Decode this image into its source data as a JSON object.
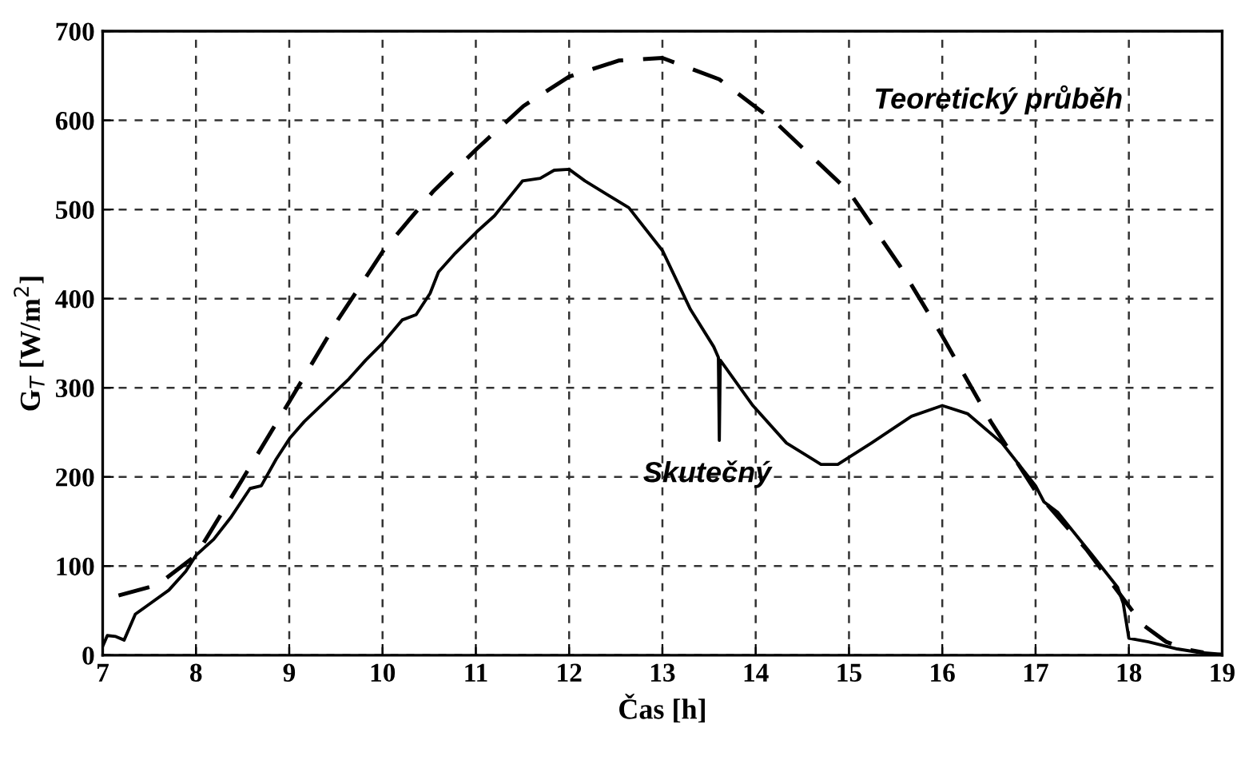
{
  "chart_data": {
    "type": "line",
    "xlabel": "Čas [h]",
    "ylabel": "G$_{T}$ [W/m$^{2}$]",
    "xlim": [
      7,
      19
    ],
    "xticks": [
      7,
      8,
      9,
      10,
      11,
      12,
      13,
      14,
      15,
      16,
      17,
      18,
      19
    ],
    "ylim": [
      0,
      700
    ],
    "yticks": [
      0,
      100,
      200,
      300,
      400,
      500,
      600,
      700
    ],
    "grid": true,
    "legend": false,
    "marker": "none",
    "series": [
      {
        "name": "Teoretický průběh",
        "color": "#000000",
        "line_style": "dashed",
        "x": [
          7.17,
          7.59,
          8.0,
          8.49,
          9.01,
          9.52,
          10.01,
          10.54,
          11.01,
          11.51,
          12.0,
          12.53,
          13.0,
          13.61,
          14.21,
          15.0,
          15.55,
          16.0,
          16.52,
          17.0,
          17.55,
          18.15,
          18.4,
          18.6,
          18.8
        ],
        "values": [
          67,
          79,
          112,
          196,
          286,
          376,
          454,
          520,
          568,
          616,
          649,
          667,
          670,
          646,
          598,
          520,
          436,
          358,
          262,
          184,
          118,
          34,
          15,
          7,
          3
        ]
      },
      {
        "name": "Skutečný",
        "color": "#000000",
        "line_style": "solid",
        "x": [
          7.0,
          7.05,
          7.14,
          7.23,
          7.35,
          7.47,
          7.71,
          7.89,
          8.0,
          8.19,
          8.37,
          8.58,
          8.7,
          8.86,
          9.01,
          9.16,
          9.4,
          9.64,
          9.82,
          10.01,
          10.21,
          10.36,
          10.51,
          10.6,
          10.78,
          11.01,
          11.2,
          11.5,
          11.69,
          11.84,
          12.0,
          12.17,
          12.64,
          13.0,
          13.3,
          13.55,
          13.6,
          13.61,
          13.62,
          13.97,
          14.33,
          14.7,
          14.88,
          15.24,
          15.67,
          16.0,
          16.27,
          16.64,
          17.0,
          17.09,
          17.24,
          17.61,
          17.88,
          17.94,
          18.0,
          18.21,
          18.52,
          18.76,
          19.0
        ],
        "values": [
          10,
          22,
          21,
          17,
          46,
          55,
          73,
          94,
          112,
          130,
          154,
          187,
          190,
          220,
          244,
          262,
          286,
          310,
          331,
          351,
          376,
          382,
          406,
          430,
          451,
          475,
          493,
          532,
          535,
          544,
          545,
          532,
          502,
          454,
          388,
          346,
          334,
          241,
          331,
          280,
          238,
          214,
          214,
          238,
          268,
          280,
          271,
          238,
          190,
          172,
          160,
          112,
          76,
          58,
          19,
          15,
          7,
          3,
          1
        ]
      }
    ]
  }
}
